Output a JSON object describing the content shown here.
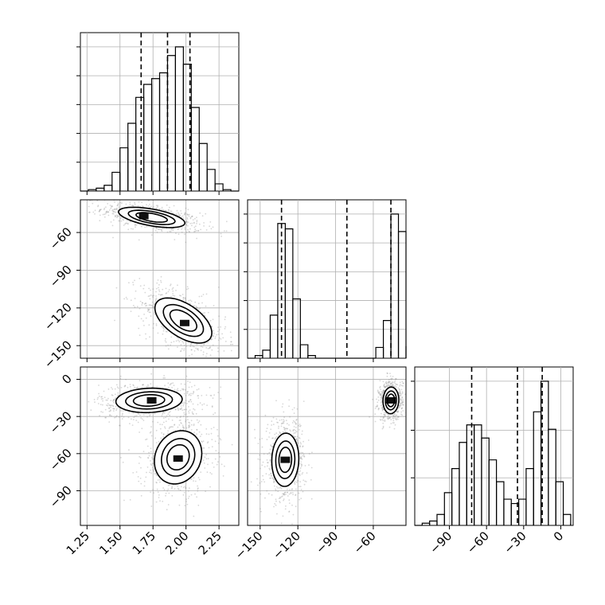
{
  "chart_data": {
    "type": "corner",
    "parameters": [
      {
        "ticks": [
          1.25,
          1.5,
          1.75,
          2.0,
          2.25
        ],
        "tick_labels": [
          "1.25",
          "1.50",
          "1.75",
          "2.00",
          "2.25"
        ],
        "range": [
          1.2,
          2.4
        ]
      },
      {
        "ticks": [
          -150,
          -120,
          -90,
          -60
        ],
        "tick_labels": [
          "−150",
          "−120",
          "−90",
          "−60"
        ],
        "range": [
          -160,
          -34
        ]
      },
      {
        "ticks": [
          -90,
          -60,
          -30,
          0
        ],
        "tick_labels": [
          "−90",
          "−60",
          "−30",
          "0"
        ],
        "range": [
          -118,
          10
        ]
      }
    ],
    "histograms": [
      {
        "parameter": 0,
        "bin_edges": [
          1.2,
          1.26,
          1.32,
          1.38,
          1.44,
          1.5,
          1.56,
          1.62,
          1.68,
          1.74,
          1.8,
          1.86,
          1.92,
          1.98,
          2.04,
          2.1,
          2.16,
          2.22,
          2.28,
          2.34,
          2.4
        ],
        "counts": [
          0,
          1,
          2,
          4,
          13,
          30,
          47,
          65,
          74,
          78,
          82,
          94,
          100,
          88,
          58,
          33,
          15,
          5,
          1,
          0
        ],
        "quantiles": [
          1.66,
          1.86,
          2.03
        ]
      },
      {
        "parameter": 1,
        "bin_edges": [
          -160,
          -154,
          -148,
          -142,
          -136,
          -130,
          -124,
          -118,
          -112,
          -106,
          -100,
          -94,
          -88,
          -82,
          -76,
          -70,
          -64,
          -58,
          -52,
          -46,
          -40,
          -34
        ],
        "counts": [
          0,
          2,
          6,
          32,
          100,
          96,
          44,
          10,
          2,
          0,
          0,
          0,
          0,
          0,
          0,
          0,
          0,
          8,
          28,
          107,
          94,
          9
        ],
        "quantiles": [
          -133,
          -81,
          -46
        ]
      },
      {
        "parameter": 2,
        "bin_edges": [
          -118,
          -112,
          -106,
          -100,
          -94,
          -88,
          -82,
          -76,
          -70,
          -64,
          -58,
          -52,
          -46,
          -40,
          -34,
          -28,
          -22,
          -16,
          -10,
          -4,
          2,
          8
        ],
        "counts": [
          0,
          1,
          2,
          5,
          15,
          26,
          38,
          46,
          46,
          40,
          30,
          20,
          12,
          10,
          12,
          26,
          52,
          66,
          44,
          20,
          5,
          1
        ],
        "quantiles": [
          -72,
          -35,
          -15
        ]
      }
    ],
    "joint_distributions": [
      {
        "x": 0,
        "y": 1,
        "modes": [
          {
            "mean": [
              1.74,
              -48
            ],
            "sd": [
              0.14,
              4.5
            ],
            "rho": -0.55,
            "peak": [
              1.68,
              -47
            ]
          },
          {
            "mean": [
              1.98,
              -130
            ],
            "sd": [
              0.12,
              10
            ],
            "rho": -0.55,
            "peak": [
              1.99,
              -132
            ]
          }
        ]
      },
      {
        "x": 0,
        "y": 2,
        "modes": [
          {
            "mean": [
              1.72,
              -17
            ],
            "sd": [
              0.14,
              5.5
            ],
            "rho": 0.1,
            "peak": [
              1.74,
              -17
            ]
          },
          {
            "mean": [
              1.94,
              -63
            ],
            "sd": [
              0.1,
              12
            ],
            "rho": 0.15,
            "peak": [
              1.94,
              -64
            ]
          }
        ]
      },
      {
        "x": 1,
        "y": 2,
        "modes": [
          {
            "mean": [
              -130,
              -65
            ],
            "sd": [
              6,
              12
            ],
            "rho": 0.05,
            "peak": [
              -130,
              -65
            ]
          },
          {
            "mean": [
              -46,
              -17
            ],
            "sd": [
              3.5,
              6
            ],
            "rho": 0.05,
            "peak": [
              -46,
              -17
            ]
          }
        ]
      }
    ],
    "contour_levels": [
      0.3,
      0.55,
      0.8
    ],
    "grid": true,
    "colors": {
      "line": "#000000",
      "grid": "#b0b0b0",
      "points": "#8c8c8c",
      "density_dark": "#101010"
    }
  }
}
